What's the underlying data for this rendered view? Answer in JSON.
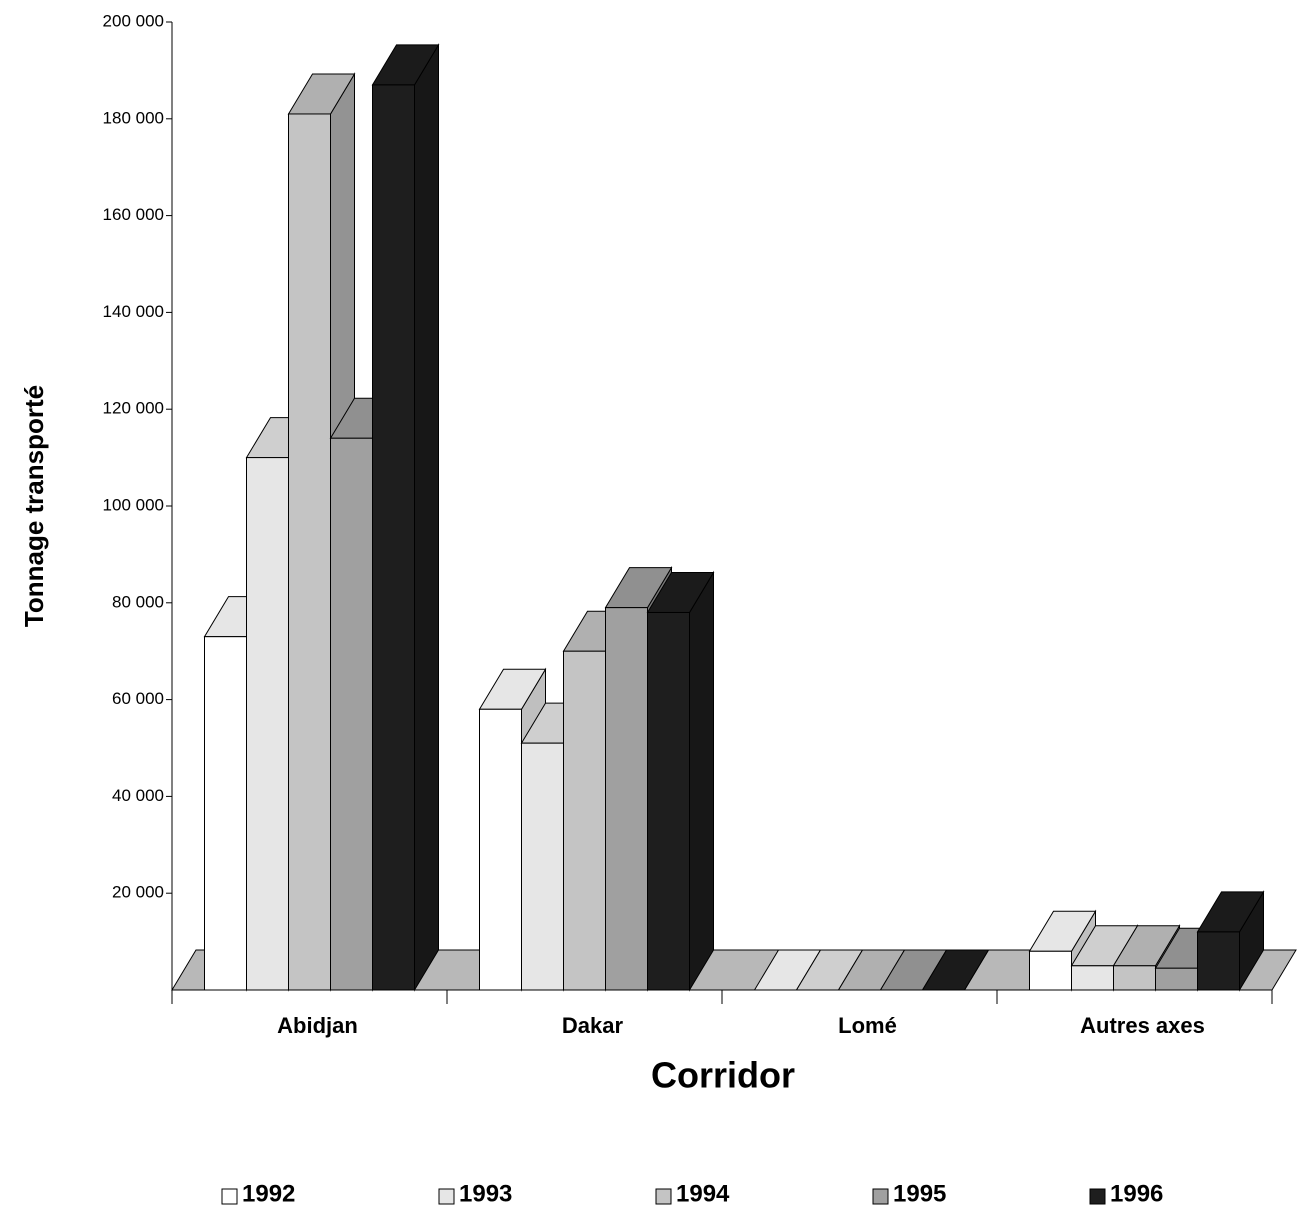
{
  "chart_data": {
    "type": "bar3d",
    "x_label": "Corridor",
    "y_label": "Tonnage transporté",
    "categories": [
      "Abidjan",
      "Dakar",
      "Lomé",
      "Autres axes"
    ],
    "series": [
      {
        "name": "1992",
        "color": "#ffffff",
        "values": [
          73000,
          58000,
          0,
          8000
        ]
      },
      {
        "name": "1993",
        "color": "#e6e6e6",
        "values": [
          110000,
          51000,
          0,
          5000
        ]
      },
      {
        "name": "1994",
        "color": "#c4c4c4",
        "values": [
          181000,
          70000,
          0,
          5000
        ]
      },
      {
        "name": "1995",
        "color": "#a0a0a0",
        "values": [
          114000,
          79000,
          0,
          4500
        ]
      },
      {
        "name": "1996",
        "color": "#1e1e1e",
        "values": [
          187000,
          78000,
          0,
          12000
        ]
      }
    ],
    "ylim": [
      0,
      200000
    ],
    "yticks": [
      {
        "value": 20000,
        "label": "20 000"
      },
      {
        "value": 40000,
        "label": "40 000"
      },
      {
        "value": 60000,
        "label": "60 000"
      },
      {
        "value": 80000,
        "label": "80 000"
      },
      {
        "value": 100000,
        "label": "100 000"
      },
      {
        "value": 120000,
        "label": "120 000"
      },
      {
        "value": 140000,
        "label": "140 000"
      },
      {
        "value": 160000,
        "label": "160 000"
      },
      {
        "value": 180000,
        "label": "180 000"
      },
      {
        "value": 200000,
        "label": "200 000"
      }
    ],
    "legend": "bottom"
  }
}
